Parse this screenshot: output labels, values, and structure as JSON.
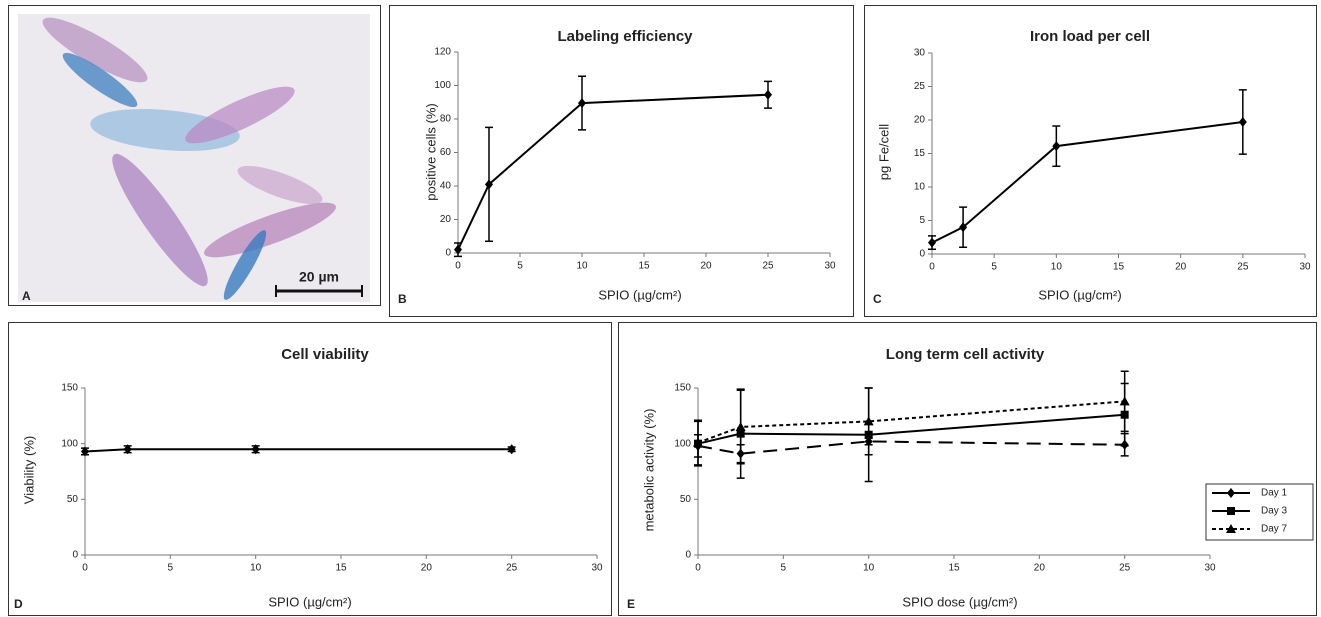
{
  "image_panel": {
    "label": "A",
    "scale_bar": "20 µm"
  },
  "chart_data": [
    {
      "type": "line",
      "label": "B",
      "title": "Labeling efficiency",
      "x_label": "SPIO (µg/cm²)",
      "y_label": "positive cells (%)",
      "x": [
        0,
        2.5,
        10,
        25
      ],
      "values": [
        2,
        41,
        89.5,
        94.5
      ],
      "errors": [
        4,
        34,
        16,
        8
      ],
      "color": "#000000",
      "marker": "diamond",
      "xlim": [
        0,
        30
      ],
      "ylim": [
        0,
        120
      ],
      "xticks": [
        0,
        5,
        10,
        15,
        20,
        25,
        30
      ],
      "yticks": [
        0,
        20,
        40,
        60,
        80,
        100,
        120
      ]
    },
    {
      "type": "line",
      "label": "C",
      "title": "Iron  load per cell",
      "x_label": "SPIO (µg/cm²)",
      "y_label": "pg Fe/cell",
      "x": [
        0,
        2.5,
        10,
        25
      ],
      "values": [
        1.7,
        4,
        16.1,
        19.7
      ],
      "errors": [
        1,
        3,
        3,
        4.8
      ],
      "color": "#000000",
      "marker": "diamond",
      "xlim": [
        0,
        30
      ],
      "ylim": [
        0,
        30
      ],
      "xticks": [
        0,
        5,
        10,
        15,
        20,
        25,
        30
      ],
      "yticks": [
        0,
        5,
        10,
        15,
        20,
        25,
        30
      ]
    },
    {
      "type": "line",
      "label": "D",
      "title": "Cell viability",
      "x_label": "SPIO (µg/cm²)",
      "y_label": "Viability (%)",
      "x": [
        0,
        2.5,
        10,
        25
      ],
      "values": [
        93,
        95,
        95,
        95
      ],
      "errors": [
        3,
        3,
        3,
        2
      ],
      "color": "#000000",
      "marker": "diamond",
      "xlim": [
        0,
        30
      ],
      "ylim": [
        0,
        150
      ],
      "xticks": [
        0,
        5,
        10,
        15,
        20,
        25,
        30
      ],
      "yticks": [
        0,
        50,
        100,
        150
      ]
    },
    {
      "type": "line",
      "label": "E",
      "title": "Long term cell activity",
      "x_label": "SPIO dose (µg/cm²)",
      "y_label": "metabolic activity (%)",
      "x": [
        0,
        2.5,
        10,
        25
      ],
      "series": [
        {
          "name": "Day 1",
          "color": "#000000",
          "marker": "diamond",
          "dash": "14 8",
          "values": [
            98,
            91,
            102,
            99
          ],
          "errors": [
            10,
            8,
            3,
            10
          ]
        },
        {
          "name": "Day 3",
          "color": "#000000",
          "marker": "square",
          "dash": "none",
          "values": [
            100,
            109,
            108,
            126
          ],
          "errors": [
            20,
            40,
            42,
            28
          ]
        },
        {
          "name": "Day 7",
          "color": "#000000",
          "marker": "triangle",
          "dash": "4 3",
          "values": [
            101,
            115,
            120,
            138
          ],
          "errors": [
            20,
            33,
            30,
            27
          ]
        }
      ],
      "legend": "right",
      "xlim": [
        0,
        30
      ],
      "ylim": [
        0,
        150
      ],
      "xticks": [
        0,
        5,
        10,
        15,
        20,
        25,
        30
      ],
      "yticks": [
        0,
        50,
        100,
        150
      ]
    }
  ]
}
